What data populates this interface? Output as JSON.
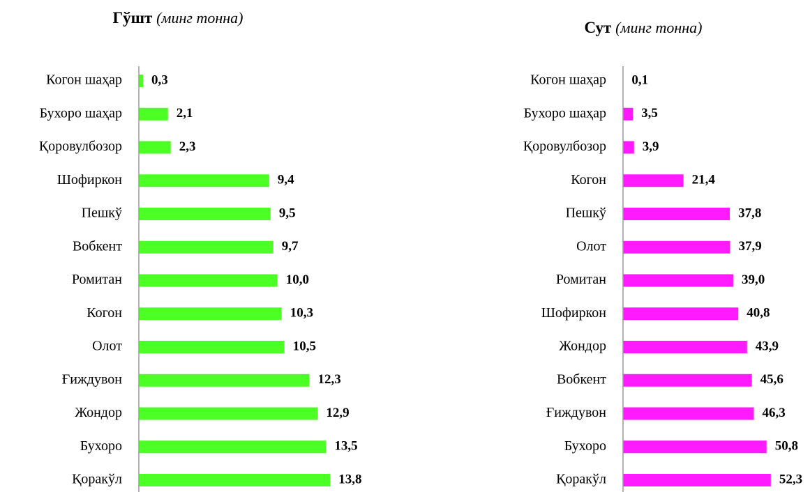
{
  "chart_data": [
    {
      "type": "bar",
      "orientation": "horizontal",
      "title": "Гўшт",
      "subtitle": "(минг тонна)",
      "categories": [
        "Когон шаҳар",
        "Бухоро шаҳар",
        "Қоровулбозор",
        "Шофиркон",
        "Пешкў",
        "Вобкент",
        "Ромитан",
        "Когон",
        "Олот",
        "Ғиждувон",
        "Жондор",
        "Бухоро",
        "Қоракўл"
      ],
      "values": [
        0.3,
        2.1,
        2.3,
        9.4,
        9.5,
        9.7,
        10.0,
        10.3,
        10.5,
        12.3,
        12.9,
        13.5,
        13.8
      ],
      "value_labels": [
        "0,3",
        "2,1",
        "2,3",
        "9,4",
        "9,5",
        "9,7",
        "10,0",
        "10,3",
        "10,5",
        "12,3",
        "12,9",
        "13,5",
        "13,8"
      ],
      "color": "#4cff24",
      "xlim": [
        0,
        16
      ]
    },
    {
      "type": "bar",
      "orientation": "horizontal",
      "title": "Сут",
      "subtitle": "(минг тонна)",
      "categories": [
        "Когон шаҳар",
        "Бухоро шаҳар",
        "Қоровулбозор",
        "Когон",
        "Пешкў",
        "Олот",
        "Ромитан",
        "Шофиркон",
        "Жондор",
        "Вобкент",
        "Ғиждувон",
        "Бухоро",
        "Қоракўл"
      ],
      "values": [
        0.1,
        3.5,
        3.9,
        21.4,
        37.8,
        37.9,
        39.0,
        40.8,
        43.9,
        45.6,
        46.3,
        50.8,
        52.3
      ],
      "value_labels": [
        "0,1",
        "3,5",
        "3,9",
        "21,4",
        "37,8",
        "37,9",
        "39,0",
        "40,8",
        "43,9",
        "45,6",
        "46,3",
        "50,8",
        "52,3"
      ],
      "color": "#ff1aff",
      "xlim": [
        0,
        60
      ]
    }
  ]
}
